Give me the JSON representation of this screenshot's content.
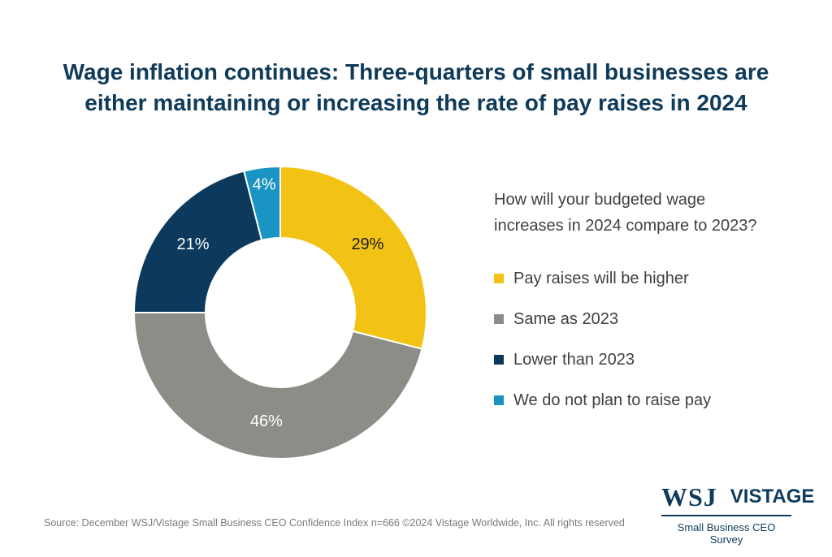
{
  "header": {
    "title_line1": "Wage inflation continues: Three-quarters of small businesses are",
    "title_line2": "either maintaining or increasing the rate of pay raises in 2024"
  },
  "legend": {
    "question_line1": "How will your budgeted wage",
    "question_line2": "increases in 2024 compare to 2023?"
  },
  "chart_data": {
    "type": "pie",
    "donut": true,
    "start": "12 o'clock, clockwise",
    "legend_placement": "right",
    "series": [
      {
        "name": "Pay raises will be higher",
        "value": 29,
        "label": "29%",
        "color": "#f2c314",
        "label_color": "#1a1a1a"
      },
      {
        "name": "Same as 2023",
        "value": 46,
        "label": "46%",
        "color": "#8b8d86",
        "label_color": "#ffffff"
      },
      {
        "name": "Lower than 2023",
        "value": 21,
        "label": "21%",
        "color": "#0d3a5c",
        "label_color": "#ffffff"
      },
      {
        "name": "We do not plan to raise pay",
        "value": 4,
        "label": "4%",
        "color": "#1a94c2",
        "label_color": "#ffffff"
      }
    ]
  },
  "footer": {
    "source": "Source: December WSJ/Vistage Small Business CEO Confidence Index n=666 ©2024 Vistage Worldwide, Inc. All rights reserved"
  },
  "logo": {
    "wsj": "WSJ",
    "vistage": "VISTAGE",
    "subtitle": "Small Business CEO Survey"
  },
  "colors": {
    "title": "#0f3b5a",
    "text": "#404040",
    "source": "#7a7a7a"
  }
}
